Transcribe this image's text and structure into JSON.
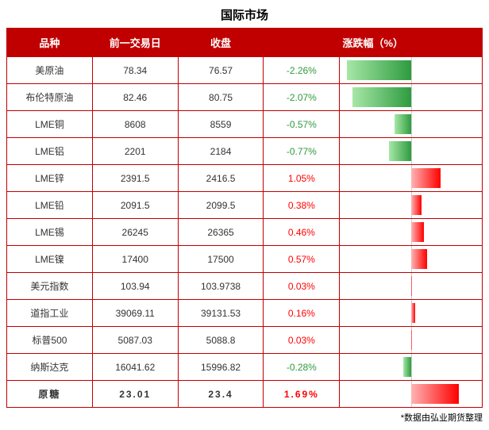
{
  "title": "国际市场",
  "footer": "*数据由弘业期货整理",
  "columns": [
    "品种",
    "前一交易日",
    "收盘",
    "涨跌幅（%）"
  ],
  "col_widths": [
    "18%",
    "18%",
    "18%",
    "16%",
    "30%"
  ],
  "colors": {
    "header_bg": "#c00000",
    "header_fg": "#ffffff",
    "border": "#c00000",
    "neg_text": "#2e9b3f",
    "pos_text": "#ff0000",
    "neg_bar_start": "#2e9b3f",
    "neg_bar_end": "#a7e7a7",
    "pos_bar_start": "#ffb3b3",
    "pos_bar_end": "#ff0000"
  },
  "bar_axis": {
    "min": -2.5,
    "max": 2.5
  },
  "rows": [
    {
      "name": "美原油",
      "prev": "78.34",
      "close": "76.57",
      "pct": -2.26,
      "pct_text": "-2.26%",
      "bold": false
    },
    {
      "name": "布伦特原油",
      "prev": "82.46",
      "close": "80.75",
      "pct": -2.07,
      "pct_text": "-2.07%",
      "bold": false
    },
    {
      "name": "LME铜",
      "prev": "8608",
      "close": "8559",
      "pct": -0.57,
      "pct_text": "-0.57%",
      "bold": false
    },
    {
      "name": "LME铝",
      "prev": "2201",
      "close": "2184",
      "pct": -0.77,
      "pct_text": "-0.77%",
      "bold": false
    },
    {
      "name": "LME锌",
      "prev": "2391.5",
      "close": "2416.5",
      "pct": 1.05,
      "pct_text": "1.05%",
      "bold": false
    },
    {
      "name": "LME铅",
      "prev": "2091.5",
      "close": "2099.5",
      "pct": 0.38,
      "pct_text": "0.38%",
      "bold": false
    },
    {
      "name": "LME锡",
      "prev": "26245",
      "close": "26365",
      "pct": 0.46,
      "pct_text": "0.46%",
      "bold": false
    },
    {
      "name": "LME镍",
      "prev": "17400",
      "close": "17500",
      "pct": 0.57,
      "pct_text": "0.57%",
      "bold": false
    },
    {
      "name": "美元指数",
      "prev": "103.94",
      "close": "103.9738",
      "pct": 0.03,
      "pct_text": "0.03%",
      "bold": false
    },
    {
      "name": "道指工业",
      "prev": "39069.11",
      "close": "39131.53",
      "pct": 0.16,
      "pct_text": "0.16%",
      "bold": false
    },
    {
      "name": "标普500",
      "prev": "5087.03",
      "close": "5088.8",
      "pct": 0.03,
      "pct_text": "0.03%",
      "bold": false
    },
    {
      "name": "纳斯达克",
      "prev": "16041.62",
      "close": "15996.82",
      "pct": -0.28,
      "pct_text": "-0.28%",
      "bold": false
    },
    {
      "name": "原糖",
      "prev": "23.01",
      "close": "23.4",
      "pct": 1.69,
      "pct_text": "1.69%",
      "bold": true
    }
  ]
}
